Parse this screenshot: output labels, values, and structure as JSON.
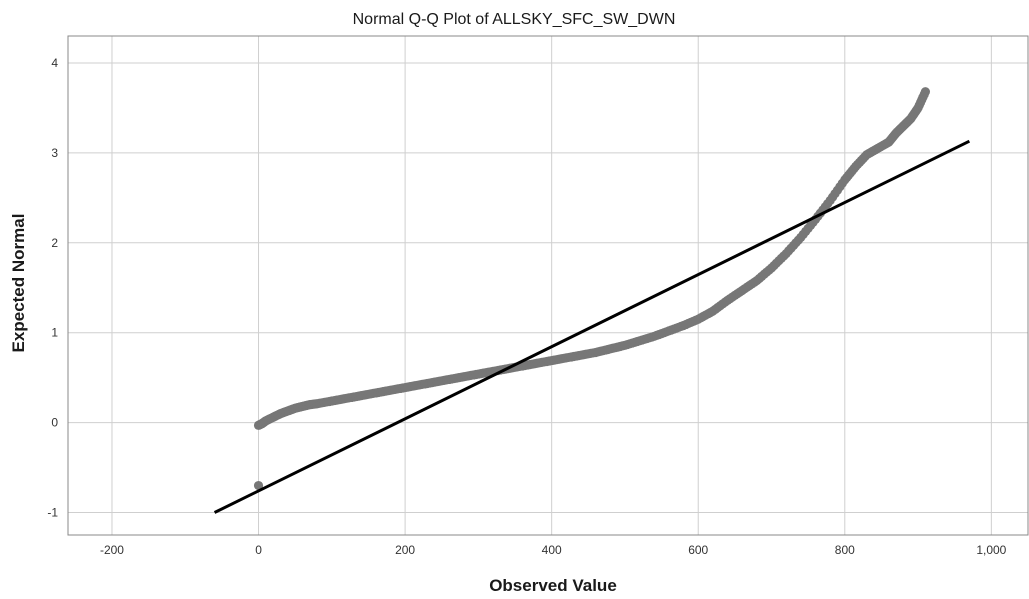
{
  "chart_data": {
    "type": "scatter",
    "title": "Normal Q-Q Plot of ALLSKY_SFC_SW_DWN",
    "xlabel": "Observed Value",
    "ylabel": "Expected Normal",
    "xlim": [
      -260,
      1050
    ],
    "ylim": [
      -1.25,
      4.3
    ],
    "x_ticks": [
      -200,
      0,
      200,
      400,
      600,
      800,
      1000
    ],
    "x_tick_labels": [
      "-200",
      "0",
      "200",
      "400",
      "600",
      "800",
      "1,000"
    ],
    "y_ticks": [
      -1,
      0,
      1,
      2,
      3,
      4
    ],
    "y_tick_labels": [
      "-1",
      "0",
      "1",
      "2",
      "3",
      "4"
    ],
    "grid": true,
    "point_color": "#777777",
    "line_color": "#000000",
    "reference_line": {
      "x": [
        -60,
        970
      ],
      "y": [
        -1.0,
        3.13
      ]
    },
    "series": [
      {
        "x": [
          0,
          0,
          5,
          10,
          20,
          30,
          40,
          50,
          60,
          70,
          80,
          100,
          120,
          140,
          160,
          180,
          200,
          220,
          240,
          260,
          280,
          300,
          320,
          340,
          360,
          380,
          400,
          420,
          440,
          460,
          480,
          500,
          520,
          540,
          560,
          580,
          600,
          620,
          640,
          660,
          680,
          700,
          720,
          740,
          760,
          780,
          800,
          815,
          830,
          845,
          860,
          870,
          880,
          890,
          900,
          910
        ],
        "y": [
          -0.7,
          -0.03,
          -0.01,
          0.02,
          0.06,
          0.1,
          0.13,
          0.16,
          0.18,
          0.2,
          0.21,
          0.24,
          0.27,
          0.3,
          0.33,
          0.36,
          0.39,
          0.42,
          0.45,
          0.48,
          0.51,
          0.54,
          0.57,
          0.6,
          0.63,
          0.66,
          0.69,
          0.72,
          0.75,
          0.78,
          0.82,
          0.86,
          0.91,
          0.96,
          1.02,
          1.08,
          1.15,
          1.24,
          1.36,
          1.47,
          1.58,
          1.72,
          1.88,
          2.06,
          2.26,
          2.47,
          2.7,
          2.85,
          2.98,
          3.05,
          3.12,
          3.22,
          3.3,
          3.38,
          3.5,
          3.68
        ]
      }
    ]
  }
}
